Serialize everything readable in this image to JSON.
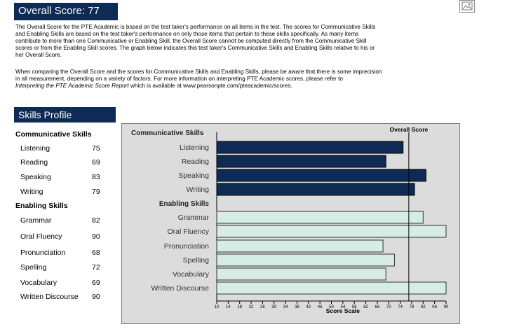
{
  "header": {
    "overall_label": "Overall Score: 77"
  },
  "intro": {
    "p1_lines": [
      "The Overall Score for the PTE Academic is based on the test taker's performance on all items in the test.  The scores for Communicative Skills",
      "and Enabling Skills are based on the test taker's performance on only those items that pertain to these skills specifically.  As many items",
      "contribute to more than one Communicative or Enabling Skill, the Overall Score cannot be computed directly from the Communicative Skill",
      "scores or from the Enabling Skill scores.  The graph below indicates this test taker's Communicative Skills and Enabling Skills relative to his or",
      "her Overall Score."
    ],
    "p2_lines": [
      "When comparing the Overall Score and the scores for Communicative Skills and Enabling Skills, please be aware that there is some imprecision",
      "in all measurement, depending on a variety of factors.  For more information on interpreting PTE Academic scores, please refer to"
    ],
    "p2_italic": "Interpreting the PTE Academic Score Report",
    "p2_tail": " which is available at www.pearsonpte.com/pteacademic/scores."
  },
  "skills_profile": {
    "title": "Skills Profile",
    "communicative_header": "Communicative Skills",
    "enabling_header": "Enabling Skills",
    "communicative": [
      {
        "name": "Listening",
        "score": "75"
      },
      {
        "name": "Reading",
        "score": "69"
      },
      {
        "name": "Speaking",
        "score": "83"
      },
      {
        "name": "Writing",
        "score": "79"
      }
    ],
    "enabling": [
      {
        "name": "Grammar",
        "score": "82"
      },
      {
        "name": "Oral Fluency",
        "score": "90"
      },
      {
        "name": "Pronunciation",
        "score": "68"
      },
      {
        "name": "Spelling",
        "score": "72"
      },
      {
        "name": "Vocabulary",
        "score": "69"
      },
      {
        "name": "Written Discourse",
        "score": "90"
      }
    ]
  },
  "colors": {
    "navy": "#0d2b55",
    "communicative_bar": "#0d2b55",
    "enabling_bar": "#d6ede6",
    "chart_bg": "#dcdcdc"
  },
  "chart_data": {
    "type": "bar",
    "orientation": "horizontal",
    "title": "",
    "overall_label": "Overall Score",
    "overall_value": 77,
    "xlabel": "Score Scale",
    "xlim": [
      10,
      90
    ],
    "xticks": [
      "10",
      "14",
      "18",
      "22",
      "26",
      "30",
      "34",
      "38",
      "42",
      "46",
      "50",
      "54",
      "58",
      "62",
      "66",
      "70",
      "74",
      "78",
      "82",
      "86",
      "90"
    ],
    "groups": [
      {
        "label": "Communicative Skills",
        "categories": [
          "Listening",
          "Reading",
          "Speaking",
          "Writing"
        ],
        "values": [
          75,
          69,
          83,
          79
        ]
      },
      {
        "label": "Enabling Skills",
        "categories": [
          "Grammar",
          "Oral Fluency",
          "Pronunciation",
          "Spelling",
          "Vocabulary",
          "Written Discourse"
        ],
        "values": [
          82,
          90,
          68,
          72,
          69,
          90
        ]
      }
    ]
  }
}
